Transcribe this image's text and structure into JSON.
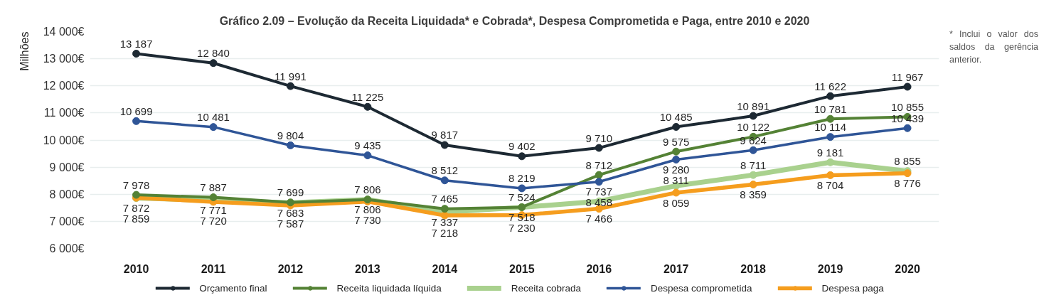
{
  "chart_data": {
    "type": "line",
    "title": "Gráfico 2.09 – Evolução da Receita Liquidada* e Cobrada*, Despesa Comprometida e Paga, entre 2010 e 2020",
    "ylabel": "Milhões",
    "annotations": [
      "* Inclui o valor dos saldos da gerência anterior."
    ],
    "categories": [
      "2010",
      "2011",
      "2012",
      "2013",
      "2014",
      "2015",
      "2016",
      "2017",
      "2018",
      "2019",
      "2020"
    ],
    "ylim": [
      6000,
      14000
    ],
    "yticks": [
      {
        "value": 6000,
        "label": "6 000€"
      },
      {
        "value": 7000,
        "label": "7 000€"
      },
      {
        "value": 8000,
        "label": "8 000€"
      },
      {
        "value": 9000,
        "label": "9 000€"
      },
      {
        "value": 10000,
        "label": "10 000€"
      },
      {
        "value": 11000,
        "label": "11 000€"
      },
      {
        "value": 12000,
        "label": "12 000€"
      },
      {
        "value": 13000,
        "label": "13 000€"
      },
      {
        "value": 14000,
        "label": "14 000€"
      }
    ],
    "grid": "y",
    "legend": "bottom",
    "marker": "circle",
    "line_style": "solid",
    "series": [
      {
        "name": "Orçamento final",
        "color": "#1d2933",
        "values": [
          13187,
          12840,
          11991,
          11225,
          9817,
          9402,
          9710,
          10485,
          10891,
          11622,
          11967
        ],
        "value_labels": [
          "13 187",
          "12 840",
          "11 991",
          "11 225",
          "9 817",
          "9 402",
          "9 710",
          "10 485",
          "10 891",
          "11 622",
          "11 967"
        ]
      },
      {
        "name": "Receita liquidada líquida",
        "color": "#548235",
        "values": [
          7978,
          7887,
          7699,
          7806,
          7465,
          7524,
          8712,
          9575,
          10122,
          10781,
          10855
        ],
        "value_labels": [
          "7 978",
          "7 887",
          "7 699",
          "7 806",
          "7 465",
          "7 524",
          "8 712",
          "9 575",
          "10 122",
          "10 781",
          "10 855"
        ]
      },
      {
        "name": "Receita cobrada",
        "color": "#a9d18e",
        "values": [
          7859,
          7771,
          7683,
          7806,
          7337,
          7518,
          7737,
          8311,
          8711,
          9181,
          8855
        ],
        "value_labels": [
          "7 859",
          "7 771",
          "7 683",
          "7 806",
          "7 337",
          "7 518",
          "7 737",
          "8 311",
          "8 711",
          "9 181",
          "8 855"
        ]
      },
      {
        "name": "Despesa comprometida",
        "color": "#2f5597",
        "values": [
          10699,
          10481,
          9804,
          9435,
          8512,
          8219,
          8458,
          9280,
          9624,
          10114,
          10439
        ],
        "value_labels": [
          "10 699",
          "10 481",
          "9 804",
          "9 435",
          "8 512",
          "8 219",
          "8 458",
          "9 280",
          "9 624",
          "10 114",
          "10 439"
        ]
      },
      {
        "name": "Despesa paga",
        "color": "#f59d1e",
        "values": [
          7872,
          7720,
          7587,
          7730,
          7218,
          7230,
          7466,
          8059,
          8359,
          8704,
          8776
        ],
        "value_labels": [
          "7 872",
          "7 720",
          "7 587",
          "7 730",
          "7 218",
          "7 230",
          "7 466",
          "8 059",
          "8 359",
          "8 704",
          "8 776"
        ]
      }
    ]
  }
}
